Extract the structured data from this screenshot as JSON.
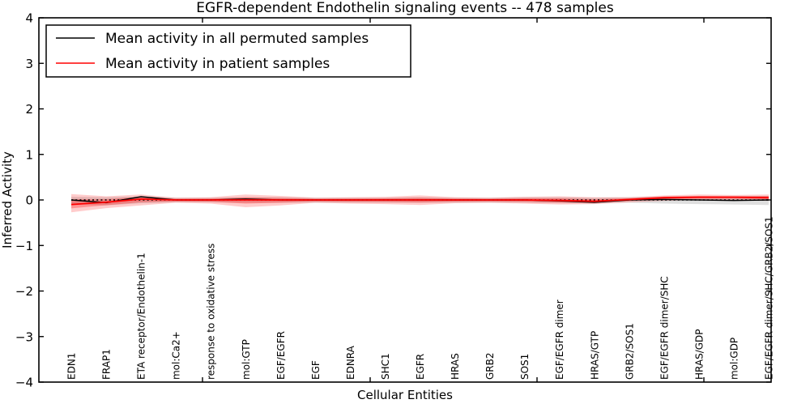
{
  "chart_data": {
    "type": "line",
    "title": "EGFR-dependent Endothelin signaling events -- 478 samples",
    "xlabel": "Cellular Entities",
    "ylabel": "Inferred Activity",
    "ylim": [
      -4,
      4
    ],
    "yticks": [
      4,
      3,
      2,
      1,
      0,
      -1,
      -2,
      -3,
      -4
    ],
    "ytick_labels": [
      "4",
      "3",
      "2",
      "1",
      "0",
      "−1",
      "−2",
      "−3",
      "−4"
    ],
    "grid": false,
    "legend": {
      "position": "upper left",
      "entries": [
        {
          "label": "Mean activity in all permuted samples",
          "color": "#000000"
        },
        {
          "label": "Mean activity in patient samples",
          "color": "#ff0000"
        }
      ]
    },
    "categories": [
      "EDN1",
      "FRAP1",
      "ETA receptor/Endothelin-1",
      "mol:Ca2+",
      "response to oxidative stress",
      "mol:GTP",
      "EGF/EGFR",
      "EGF",
      "EDNRA",
      "SHC1",
      "EGFR",
      "HRAS",
      "GRB2",
      "SOS1",
      "EGF/EGFR dimer",
      "HRAS/GTP",
      "GRB2/SOS1",
      "EGF/EGFR dimer/SHC",
      "HRAS/GDP",
      "mol:GDP",
      "EGF/EGFR dimer/SHC/GRB2/SOS1"
    ],
    "series": [
      {
        "name": "Mean activity in all permuted samples",
        "color": "#000000",
        "style": "solid",
        "values": [
          0.0,
          -0.06,
          0.07,
          0.0,
          0.0,
          0.02,
          0.0,
          0.0,
          0.0,
          0.0,
          0.0,
          0.0,
          0.0,
          0.0,
          -0.02,
          -0.05,
          0.0,
          0.01,
          0.0,
          -0.01,
          0.0
        ]
      },
      {
        "name": "Mean activity in patient samples",
        "color": "#ff0000",
        "style": "solid",
        "values": [
          -0.1,
          -0.05,
          0.02,
          0.0,
          0.0,
          0.0,
          0.0,
          0.0,
          0.0,
          0.0,
          0.0,
          0.0,
          0.0,
          0.0,
          -0.01,
          -0.03,
          0.01,
          0.05,
          0.06,
          0.06,
          0.05
        ]
      }
    ],
    "bands": [
      {
        "name": "permuted-std-band",
        "color": "rgba(80,80,80,0.18)",
        "hi": [
          0.07,
          0.06,
          0.08,
          0.05,
          0.05,
          0.06,
          0.06,
          0.05,
          0.05,
          0.05,
          0.06,
          0.05,
          0.05,
          0.06,
          0.06,
          0.05,
          0.06,
          0.07,
          0.08,
          0.08,
          0.09
        ],
        "lo": [
          -0.09,
          -0.12,
          -0.07,
          -0.05,
          -0.05,
          -0.06,
          -0.06,
          -0.06,
          -0.06,
          -0.06,
          -0.06,
          -0.06,
          -0.06,
          -0.06,
          -0.07,
          -0.08,
          -0.06,
          -0.08,
          -0.09,
          -0.1,
          -0.11
        ]
      },
      {
        "name": "patient-std-band",
        "color": "rgba(255,0,0,0.20)",
        "hi": [
          0.13,
          0.08,
          0.12,
          0.05,
          0.06,
          0.12,
          0.09,
          0.05,
          0.06,
          0.07,
          0.1,
          0.06,
          0.05,
          0.07,
          0.08,
          0.06,
          0.06,
          0.1,
          0.12,
          0.11,
          0.12
        ],
        "lo": [
          -0.27,
          -0.18,
          -0.12,
          -0.06,
          -0.08,
          -0.16,
          -0.12,
          -0.06,
          -0.08,
          -0.09,
          -0.11,
          -0.07,
          -0.06,
          -0.08,
          -0.1,
          -0.09,
          -0.05,
          -0.02,
          0.0,
          0.0,
          -0.02
        ]
      }
    ],
    "zero_line": {
      "value": 0,
      "style": "dotted",
      "color": "#000000"
    }
  }
}
